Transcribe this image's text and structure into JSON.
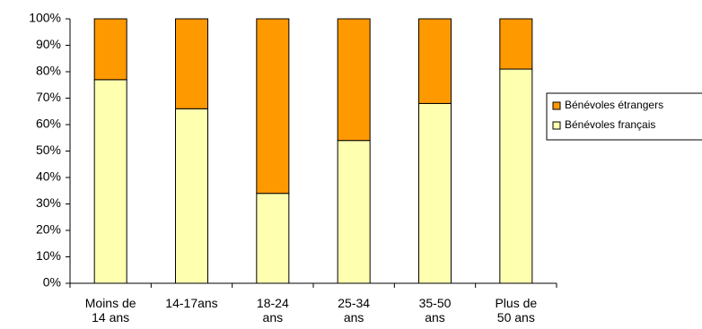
{
  "chart_data": {
    "type": "stacked_bar",
    "categories": [
      "Moins de\n14 ans",
      "14-17ans",
      "18-24\nans",
      "25-34\nans",
      "35-50\nans",
      "Plus de\n50 ans"
    ],
    "series": [
      {
        "name": "Bénévoles français",
        "color": "#ffffb0",
        "values": [
          77,
          66,
          34,
          54,
          68,
          81
        ]
      },
      {
        "name": "Bénévoles étrangers",
        "color": "#ff9900",
        "values": [
          23,
          34,
          66,
          46,
          32,
          19
        ]
      }
    ],
    "ylim": [
      0,
      100
    ],
    "yticks": [
      {
        "value": 0,
        "label": "0%"
      },
      {
        "value": 10,
        "label": "10%"
      },
      {
        "value": 20,
        "label": "20%"
      },
      {
        "value": 30,
        "label": "30%"
      },
      {
        "value": 40,
        "label": "40%"
      },
      {
        "value": 50,
        "label": "50%"
      },
      {
        "value": 60,
        "label": "60%"
      },
      {
        "value": 70,
        "label": "70%"
      },
      {
        "value": 80,
        "label": "80%"
      },
      {
        "value": 90,
        "label": "90%"
      },
      {
        "value": 100,
        "label": "100%"
      }
    ],
    "legend": "right"
  }
}
